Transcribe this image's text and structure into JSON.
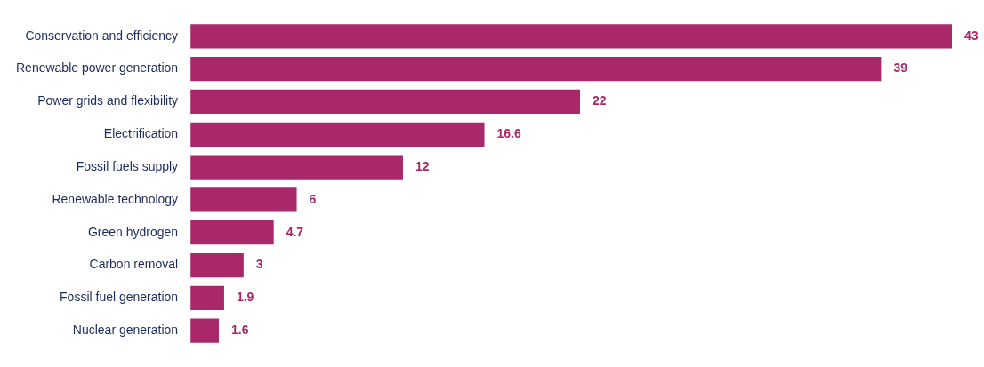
{
  "chart_data": {
    "type": "bar",
    "orientation": "horizontal",
    "categories": [
      "Conservation and efficiency",
      "Renewable power generation",
      "Power grids and flexibility",
      "Electrification",
      "Fossil fuels supply",
      "Renewable technology",
      "Green hydrogen",
      "Carbon removal",
      "Fossil fuel generation",
      "Nuclear generation"
    ],
    "values": [
      43,
      39,
      22,
      16.6,
      12,
      6,
      4.7,
      3,
      1.9,
      1.6
    ],
    "color": "#a8286a",
    "xlim": [
      0,
      43
    ],
    "grid": false,
    "data_labels": true,
    "tick_labels": "y"
  }
}
